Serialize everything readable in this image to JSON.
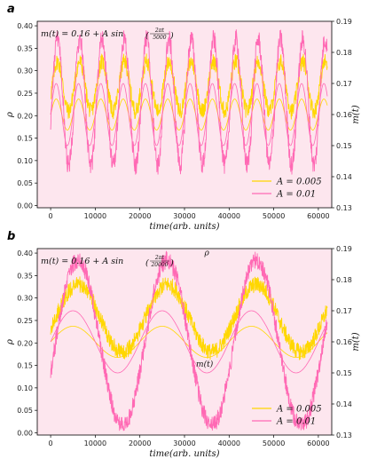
{
  "chart_data": [
    {
      "panel": "a",
      "type": "line",
      "equation": {
        "main": "m(t) = 0.16 + A sin",
        "frac_num": "2πt",
        "frac_den": "5000"
      },
      "xlabel": "time(arb. units)",
      "ylabel": "ρ",
      "ylabel_right": "m(t)",
      "xlim": [
        -3000,
        63000
      ],
      "ylim": [
        -0.005,
        0.41
      ],
      "ylim_right": [
        0.13,
        0.19
      ],
      "xticks": [
        "0",
        "10000",
        "20000",
        "30000",
        "40000",
        "50000",
        "60000"
      ],
      "yticks": [
        "0.00",
        "0.05",
        "0.10",
        "0.15",
        "0.20",
        "0.25",
        "0.30",
        "0.35",
        "0.40"
      ],
      "yticks_right": [
        "0.13",
        "0.14",
        "0.15",
        "0.16",
        "0.17",
        "0.18",
        "0.19"
      ],
      "legend_position": "lower-right",
      "series": [
        {
          "name": "A = 0.005",
          "color": "#ffd700",
          "rho": {
            "period": 5000,
            "phase": 0,
            "mean": 0.265,
            "amp": 0.055,
            "noise": 0.018
          },
          "m": {
            "period": 5000,
            "phase": 0,
            "offset": 0.16,
            "amp": 0.005
          }
        },
        {
          "name": "A = 0.01",
          "color": "#ff69b4",
          "rho": {
            "period": 5000,
            "phase": 0,
            "mean": 0.23,
            "amp": 0.14,
            "noise": 0.022
          },
          "m": {
            "period": 5000,
            "phase": 0,
            "offset": 0.16,
            "amp": 0.01
          }
        }
      ]
    },
    {
      "panel": "b",
      "type": "line",
      "equation": {
        "main": "m(t) = 0.16 + A sin",
        "frac_num": "2πt",
        "frac_den": "20000"
      },
      "xlabel": "time(arb. units)",
      "ylabel": "ρ",
      "ylabel_right": "m(t)",
      "xlim": [
        -3000,
        63000
      ],
      "ylim": [
        -0.005,
        0.41
      ],
      "ylim_right": [
        0.13,
        0.19
      ],
      "xticks": [
        "0",
        "10000",
        "20000",
        "30000",
        "40000",
        "50000",
        "60000"
      ],
      "yticks": [
        "0.00",
        "0.05",
        "0.10",
        "0.15",
        "0.20",
        "0.25",
        "0.30",
        "0.35",
        "0.40"
      ],
      "yticks_right": [
        "0.13",
        "0.14",
        "0.15",
        "0.16",
        "0.17",
        "0.18",
        "0.19"
      ],
      "annotations": {
        "rho": "ρ",
        "m": "m(t)"
      },
      "legend_position": "lower-right",
      "series": [
        {
          "name": "A = 0.005",
          "color": "#ffd700",
          "rho": {
            "period": 20000,
            "phase": 0,
            "mean": 0.255,
            "amp": 0.075,
            "noise": 0.018
          },
          "m": {
            "period": 20000,
            "phase": 0,
            "offset": 0.16,
            "amp": 0.005
          }
        },
        {
          "name": "A = 0.01",
          "color": "#ff69b4",
          "rho": {
            "period": 20000,
            "phase": 0,
            "mean": 0.2,
            "amp": 0.185,
            "noise": 0.02
          },
          "m": {
            "period": 20000,
            "phase": 0,
            "offset": 0.16,
            "amp": 0.01
          }
        }
      ]
    }
  ]
}
